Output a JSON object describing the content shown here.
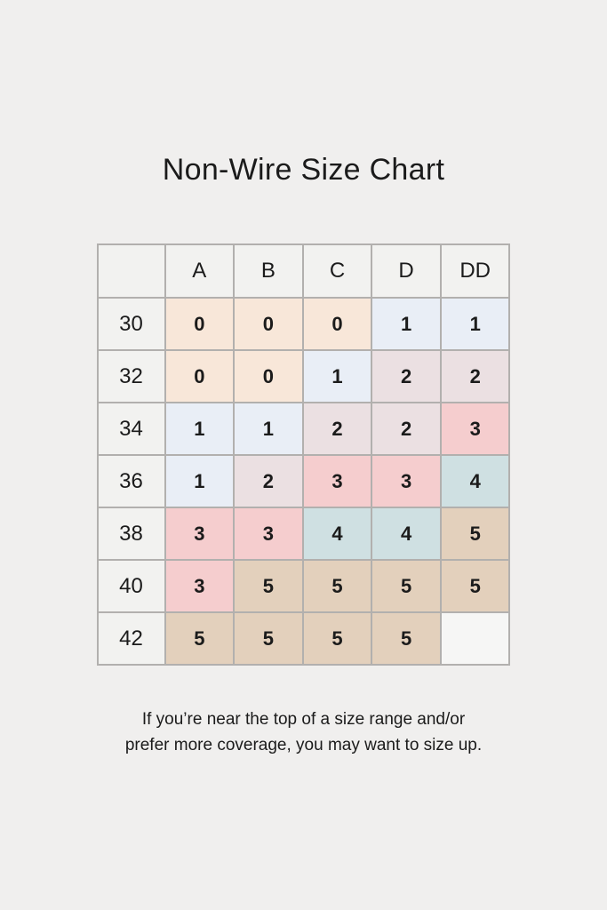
{
  "title": "Non-Wire Size Chart",
  "footer": {
    "lines": [
      "If you’re near the top of a size range and/or",
      "prefer more coverage, you may want to size up."
    ]
  },
  "chart_data": {
    "type": "table",
    "title": "Non-Wire Size Chart",
    "columns": [
      "",
      "A",
      "B",
      "C",
      "D",
      "DD"
    ],
    "rows": [
      {
        "band": "30",
        "values": [
          "0",
          "0",
          "0",
          "1",
          "1"
        ]
      },
      {
        "band": "32",
        "values": [
          "0",
          "0",
          "1",
          "2",
          "2"
        ]
      },
      {
        "band": "34",
        "values": [
          "1",
          "1",
          "2",
          "2",
          "3"
        ]
      },
      {
        "band": "36",
        "values": [
          "1",
          "2",
          "3",
          "3",
          "4"
        ]
      },
      {
        "band": "38",
        "values": [
          "3",
          "3",
          "4",
          "4",
          "5"
        ]
      },
      {
        "band": "40",
        "values": [
          "3",
          "5",
          "5",
          "5",
          "5"
        ]
      },
      {
        "band": "42",
        "values": [
          "5",
          "5",
          "5",
          "5",
          ""
        ]
      }
    ],
    "value_colors": {
      "0": "#f8e7d9",
      "1": "#e9eef6",
      "2": "#ebe0e2",
      "3": "#f5cdce",
      "4": "#cfe0e2",
      "5": "#e3d0bc",
      "": "#f6f6f5"
    },
    "colors": {
      "grid_border": "#b2b0ae",
      "label_cell_bg": "#f2f2f0",
      "page_bg": "#f0efee",
      "text": "#1b1b1b"
    },
    "note": "If you’re near the top of a size range and/or prefer more coverage, you may want to size up."
  }
}
